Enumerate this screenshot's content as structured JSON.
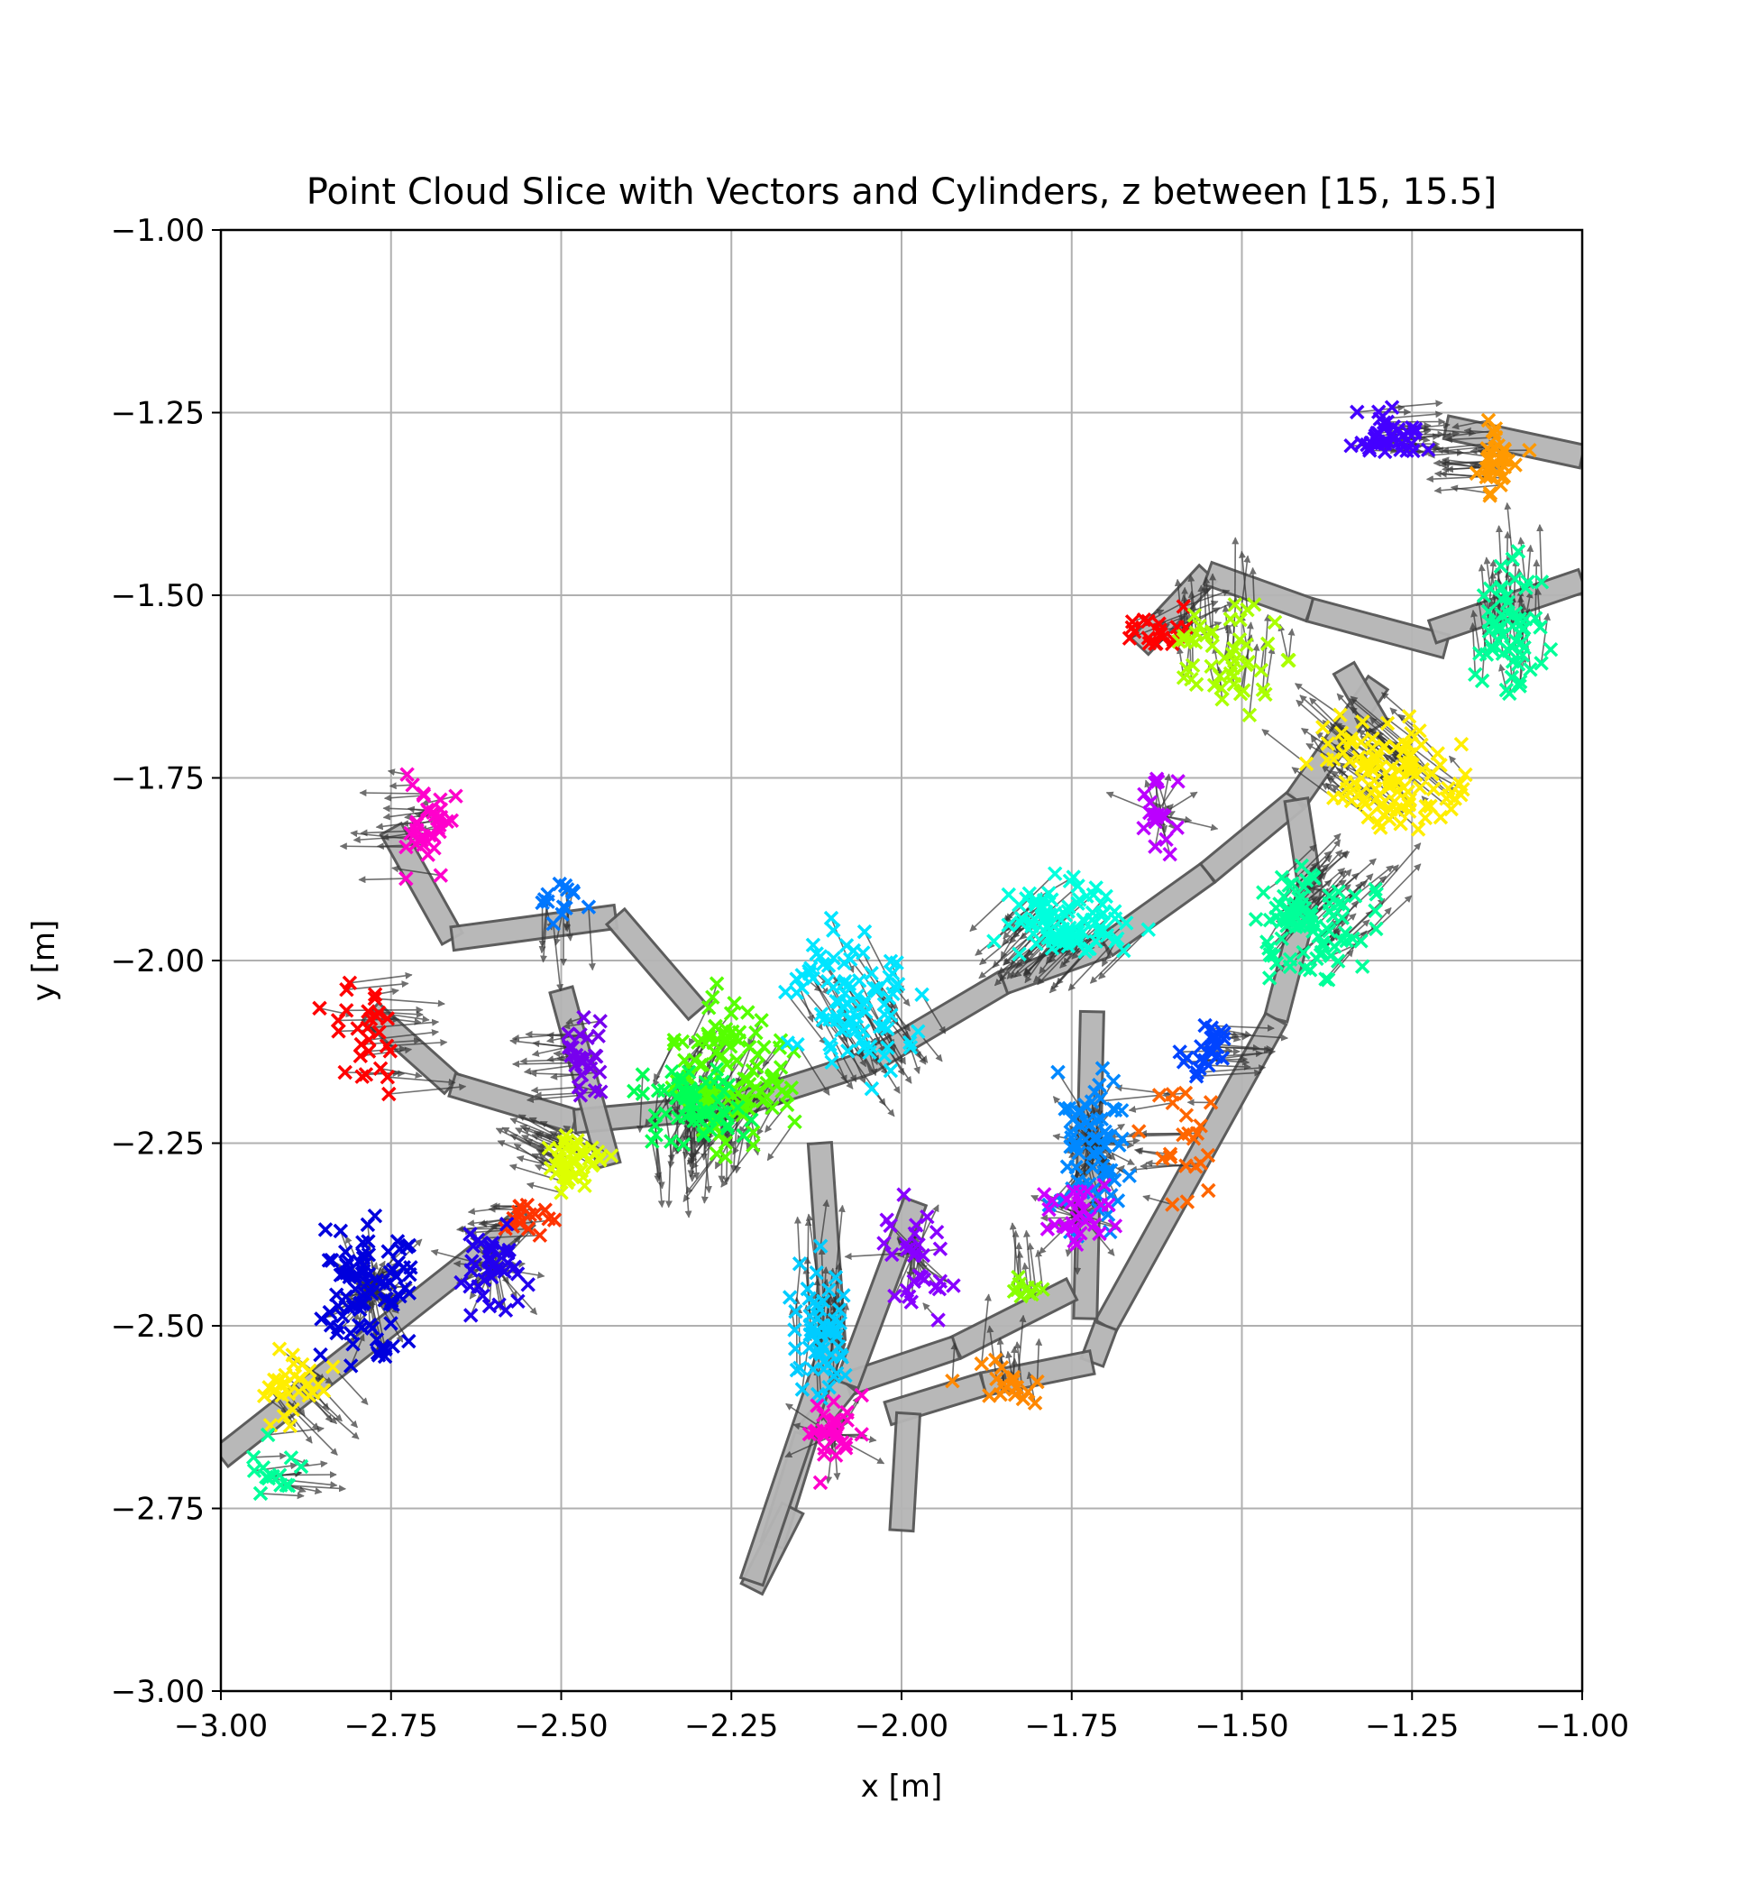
{
  "chart_data": {
    "type": "scatter",
    "title": "Point Cloud Slice with Vectors and Cylinders, z between [15, 15.5]",
    "xlabel": "x [m]",
    "ylabel": "y [m]",
    "xlim": [
      -3.0,
      -1.0
    ],
    "ylim": [
      -3.0,
      -1.0
    ],
    "grid": true,
    "marker": "x",
    "xticks": [
      "−3.00",
      "−2.75",
      "−2.50",
      "−2.25",
      "−2.00",
      "−1.75",
      "−1.50",
      "−1.25",
      "−1.00"
    ],
    "yticks": [
      "−3.00",
      "−2.75",
      "−2.50",
      "−2.25",
      "−2.00",
      "−1.75",
      "−1.50",
      "−1.25",
      "−1.00"
    ],
    "cylinders": [
      {
        "from": [
          -3.0,
          -2.68
        ],
        "to": [
          -2.55,
          -2.35
        ]
      },
      {
        "from": [
          -2.78,
          -2.07
        ],
        "to": [
          -2.66,
          -2.17
        ]
      },
      {
        "from": [
          -2.66,
          -2.17
        ],
        "to": [
          -2.48,
          -2.22
        ]
      },
      {
        "from": [
          -2.48,
          -2.22
        ],
        "to": [
          -2.25,
          -2.2
        ]
      },
      {
        "from": [
          -2.25,
          -2.2
        ],
        "to": [
          -2.05,
          -2.14
        ]
      },
      {
        "from": [
          -2.05,
          -2.14
        ],
        "to": [
          -1.85,
          -2.03
        ]
      },
      {
        "from": [
          -1.85,
          -2.03
        ],
        "to": [
          -1.7,
          -1.98
        ]
      },
      {
        "from": [
          -1.7,
          -1.98
        ],
        "to": [
          -1.55,
          -1.88
        ]
      },
      {
        "from": [
          -1.55,
          -1.88
        ],
        "to": [
          -1.42,
          -1.78
        ]
      },
      {
        "from": [
          -1.42,
          -1.78
        ],
        "to": [
          -1.3,
          -1.62
        ]
      },
      {
        "from": [
          -2.75,
          -1.82
        ],
        "to": [
          -2.66,
          -1.97
        ]
      },
      {
        "from": [
          -2.66,
          -1.97
        ],
        "to": [
          -2.42,
          -1.94
        ]
      },
      {
        "from": [
          -2.42,
          -1.94
        ],
        "to": [
          -2.3,
          -2.07
        ]
      },
      {
        "from": [
          -2.5,
          -2.04
        ],
        "to": [
          -2.43,
          -2.28
        ]
      },
      {
        "from": [
          -1.65,
          -1.57
        ],
        "to": [
          -1.55,
          -1.47
        ]
      },
      {
        "from": [
          -1.55,
          -1.47
        ],
        "to": [
          -1.4,
          -1.52
        ]
      },
      {
        "from": [
          -1.4,
          -1.52
        ],
        "to": [
          -1.2,
          -1.57
        ]
      },
      {
        "from": [
          -1.22,
          -1.55
        ],
        "to": [
          -1.0,
          -1.48
        ]
      },
      {
        "from": [
          -1.2,
          -1.27
        ],
        "to": [
          -1.0,
          -1.31
        ]
      },
      {
        "from": [
          -1.35,
          -1.6
        ],
        "to": [
          -1.3,
          -1.68
        ]
      },
      {
        "from": [
          -1.42,
          -1.78
        ],
        "to": [
          -1.4,
          -1.9
        ]
      },
      {
        "from": [
          -1.4,
          -1.9
        ],
        "to": [
          -1.45,
          -2.08
        ]
      },
      {
        "from": [
          -1.45,
          -2.08
        ],
        "to": [
          -1.7,
          -2.5
        ]
      },
      {
        "from": [
          -1.7,
          -2.5
        ],
        "to": [
          -1.72,
          -2.55
        ]
      },
      {
        "from": [
          -1.72,
          -2.55
        ],
        "to": [
          -1.88,
          -2.58
        ]
      },
      {
        "from": [
          -1.88,
          -2.58
        ],
        "to": [
          -2.02,
          -2.62
        ]
      },
      {
        "from": [
          -1.72,
          -2.07
        ],
        "to": [
          -1.73,
          -2.49
        ]
      },
      {
        "from": [
          -1.75,
          -2.45
        ],
        "to": [
          -1.92,
          -2.53
        ]
      },
      {
        "from": [
          -1.92,
          -2.53
        ],
        "to": [
          -2.08,
          -2.58
        ]
      },
      {
        "from": [
          -2.08,
          -2.58
        ],
        "to": [
          -2.14,
          -2.65
        ]
      },
      {
        "from": [
          -2.14,
          -2.65
        ],
        "to": [
          -2.19,
          -2.8
        ]
      },
      {
        "from": [
          -2.16,
          -2.75
        ],
        "to": [
          -2.22,
          -2.86
        ]
      },
      {
        "from": [
          -1.99,
          -2.62
        ],
        "to": [
          -2.0,
          -2.78
        ]
      },
      {
        "from": [
          -2.12,
          -2.25
        ],
        "to": [
          -2.1,
          -2.52
        ]
      },
      {
        "from": [
          -2.1,
          -2.52
        ],
        "to": [
          -2.22,
          -2.85
        ]
      },
      {
        "from": [
          -1.98,
          -2.33
        ],
        "to": [
          -2.08,
          -2.58
        ]
      }
    ],
    "series": [
      {
        "color": "#ff0000",
        "center": [
          -2.78,
          -2.12
        ],
        "spread": [
          0.1,
          0.12
        ],
        "count": 28,
        "dir": [
          1,
          0
        ]
      },
      {
        "color": "#ff0000",
        "center": [
          -1.62,
          -1.55
        ],
        "spread": [
          0.06,
          0.05
        ],
        "count": 20,
        "dir": [
          1,
          0.4
        ]
      },
      {
        "color": "#ff3300",
        "center": [
          -2.55,
          -2.35
        ],
        "spread": [
          0.05,
          0.04
        ],
        "count": 16,
        "dir": [
          -1,
          0
        ]
      },
      {
        "color": "#ff6600",
        "center": [
          -1.58,
          -2.25
        ],
        "spread": [
          0.08,
          0.1
        ],
        "count": 22,
        "dir": [
          -1,
          0
        ]
      },
      {
        "color": "#ff8800",
        "center": [
          -1.85,
          -2.58
        ],
        "spread": [
          0.1,
          0.04
        ],
        "count": 18,
        "dir": [
          0,
          1
        ]
      },
      {
        "color": "#ff9900",
        "center": [
          -1.13,
          -1.3
        ],
        "spread": [
          0.06,
          0.07
        ],
        "count": 34,
        "dir": [
          -1,
          0
        ]
      },
      {
        "color": "#ffee00",
        "center": [
          -2.9,
          -2.58
        ],
        "spread": [
          0.08,
          0.08
        ],
        "count": 30,
        "dir": [
          1,
          -1
        ]
      },
      {
        "color": "#ffee00",
        "center": [
          -1.28,
          -1.75
        ],
        "spread": [
          0.15,
          0.1
        ],
        "count": 120,
        "dir": [
          -1,
          0.8
        ]
      },
      {
        "color": "#ddff00",
        "center": [
          -2.48,
          -2.28
        ],
        "spread": [
          0.07,
          0.05
        ],
        "count": 45,
        "dir": [
          -1,
          0.5
        ]
      },
      {
        "color": "#aaff00",
        "center": [
          -1.52,
          -1.58
        ],
        "spread": [
          0.12,
          0.1
        ],
        "count": 50,
        "dir": [
          0,
          1
        ]
      },
      {
        "color": "#88ff00",
        "center": [
          -1.82,
          -2.45
        ],
        "spread": [
          0.04,
          0.02
        ],
        "count": 10,
        "dir": [
          0,
          1
        ]
      },
      {
        "color": "#55ff00",
        "center": [
          -2.25,
          -2.15
        ],
        "spread": [
          0.14,
          0.14
        ],
        "count": 110,
        "dir": [
          -0.6,
          -1
        ]
      },
      {
        "color": "#00ff55",
        "center": [
          -2.3,
          -2.2
        ],
        "spread": [
          0.12,
          0.08
        ],
        "count": 60,
        "dir": [
          0,
          -1
        ]
      },
      {
        "color": "#00ff99",
        "center": [
          -1.4,
          -1.95
        ],
        "spread": [
          0.12,
          0.1
        ],
        "count": 90,
        "dir": [
          1,
          1
        ]
      },
      {
        "color": "#00ff99",
        "center": [
          -1.1,
          -1.55
        ],
        "spread": [
          0.08,
          0.14
        ],
        "count": 60,
        "dir": [
          0,
          1
        ]
      },
      {
        "color": "#00ff99",
        "center": [
          -2.92,
          -2.7
        ],
        "spread": [
          0.05,
          0.06
        ],
        "count": 14,
        "dir": [
          1,
          0
        ]
      },
      {
        "color": "#00ffdd",
        "center": [
          -1.75,
          -1.95
        ],
        "spread": [
          0.14,
          0.08
        ],
        "count": 95,
        "dir": [
          -1,
          -1
        ]
      },
      {
        "color": "#00e5ff",
        "center": [
          -2.08,
          -2.05
        ],
        "spread": [
          0.14,
          0.14
        ],
        "count": 90,
        "dir": [
          0.6,
          -1
        ]
      },
      {
        "color": "#00ccff",
        "center": [
          -2.12,
          -2.5
        ],
        "spread": [
          0.06,
          0.14
        ],
        "count": 60,
        "dir": [
          0,
          1
        ]
      },
      {
        "color": "#0088ff",
        "center": [
          -1.72,
          -2.25
        ],
        "spread": [
          0.08,
          0.18
        ],
        "count": 70,
        "dir": [
          0,
          0
        ]
      },
      {
        "color": "#0077ff",
        "center": [
          -2.5,
          -1.92
        ],
        "spread": [
          0.08,
          0.05
        ],
        "count": 14,
        "dir": [
          0,
          -1
        ]
      },
      {
        "color": "#0044ff",
        "center": [
          -1.55,
          -2.12
        ],
        "spread": [
          0.07,
          0.07
        ],
        "count": 24,
        "dir": [
          1,
          0
        ]
      },
      {
        "color": "#0000dd",
        "center": [
          -2.78,
          -2.45
        ],
        "spread": [
          0.12,
          0.14
        ],
        "count": 90,
        "dir": [
          0,
          0
        ]
      },
      {
        "color": "#2200ee",
        "center": [
          -2.6,
          -2.42
        ],
        "spread": [
          0.08,
          0.1
        ],
        "count": 40,
        "dir": [
          0,
          0
        ]
      },
      {
        "color": "#4400ff",
        "center": [
          -1.28,
          -1.28
        ],
        "spread": [
          0.08,
          0.05
        ],
        "count": 40,
        "dir": [
          1,
          0
        ]
      },
      {
        "color": "#7700ee",
        "center": [
          -2.47,
          -2.13
        ],
        "spread": [
          0.05,
          0.08
        ],
        "count": 26,
        "dir": [
          -1,
          0
        ]
      },
      {
        "color": "#8800ff",
        "center": [
          -1.98,
          -2.4
        ],
        "spread": [
          0.08,
          0.12
        ],
        "count": 30,
        "dir": [
          0,
          0
        ]
      },
      {
        "color": "#cc00ff",
        "center": [
          -1.74,
          -2.35
        ],
        "spread": [
          0.06,
          0.07
        ],
        "count": 30,
        "dir": [
          0,
          0
        ]
      },
      {
        "color": "#bb00ff",
        "center": [
          -1.62,
          -1.8
        ],
        "spread": [
          0.05,
          0.08
        ],
        "count": 18,
        "dir": [
          0,
          0
        ]
      },
      {
        "color": "#ff00cc",
        "center": [
          -2.7,
          -1.82
        ],
        "spread": [
          0.06,
          0.1
        ],
        "count": 34,
        "dir": [
          -1,
          0
        ]
      },
      {
        "color": "#ff00cc",
        "center": [
          -2.1,
          -2.65
        ],
        "spread": [
          0.05,
          0.07
        ],
        "count": 30,
        "dir": [
          0,
          0
        ]
      }
    ]
  }
}
